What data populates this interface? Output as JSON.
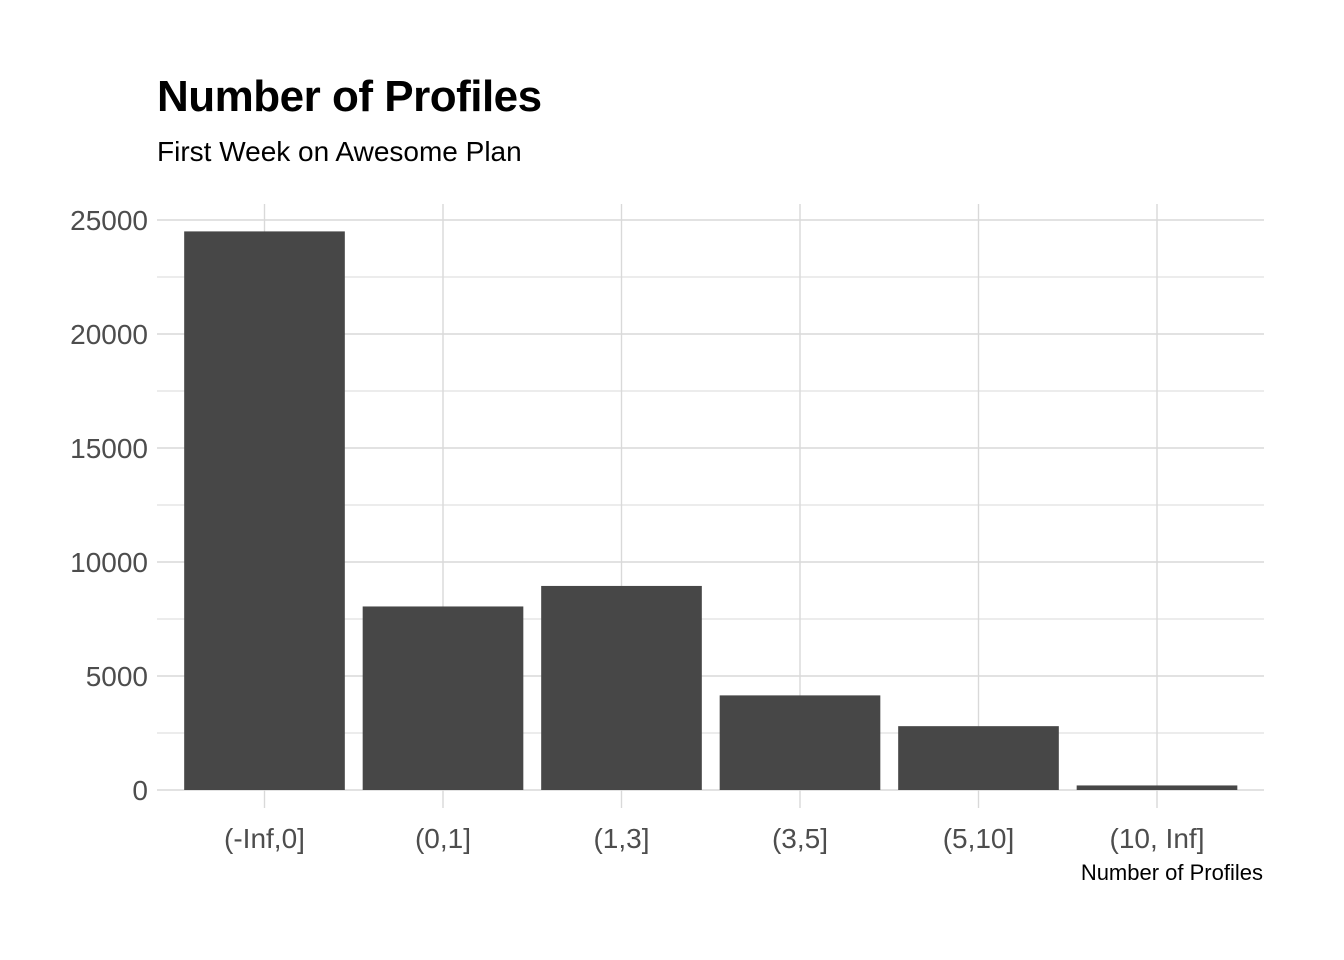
{
  "chart_data": {
    "type": "bar",
    "title": "Number of Profiles",
    "subtitle": "First Week on Awesome Plan",
    "xlabel": "Number of Profiles",
    "ylabel": "",
    "categories": [
      "(-Inf,0]",
      "(0,1]",
      "(1,3]",
      "(3,5]",
      "(5,10]",
      "(10, Inf]"
    ],
    "values": [
      24500,
      8050,
      8950,
      4150,
      2800,
      200
    ],
    "ylim": [
      0,
      25000
    ],
    "yticks": [
      0,
      5000,
      10000,
      15000,
      20000,
      25000
    ],
    "grid": true,
    "bar_color": "#474747",
    "grid_color": "#d9d9d9",
    "tick_label_color": "#4d4d4d"
  }
}
